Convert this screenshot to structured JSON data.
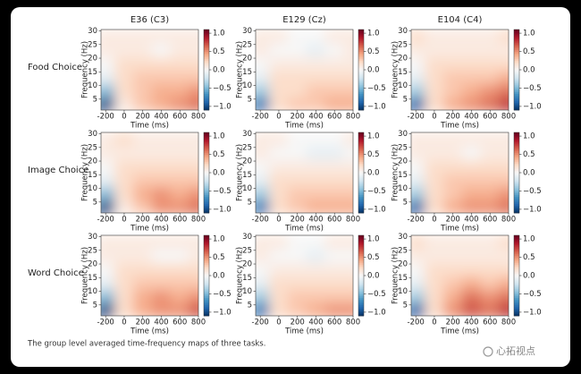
{
  "chart_data": {
    "type": "heatmap",
    "column_titles": [
      "E36 (C3)",
      "E129 (Cz)",
      "E104 (C4)"
    ],
    "row_labels": [
      "Food Choice",
      "Image Choice",
      "Word Choice"
    ],
    "x_label": "Time (ms)",
    "y_label": "Frequency (Hz)",
    "xlim": [
      -250,
      800
    ],
    "xticks": [
      -200,
      0,
      200,
      400,
      600,
      800
    ],
    "ylim": [
      1,
      30.5
    ],
    "yticks": [
      5,
      10,
      15,
      20,
      25,
      30
    ],
    "clim": [
      -1.1,
      1.1
    ],
    "cticks": [
      {
        "value": 1,
        "label": "1.0"
      },
      {
        "value": 0.5,
        "label": "0.5"
      },
      {
        "value": 0,
        "label": "0.0"
      },
      {
        "value": -0.5,
        "label": "−0.5"
      },
      {
        "value": -1,
        "label": "−1.0"
      }
    ],
    "colormap": "RdBu_r",
    "colors": [
      "#053061",
      "#2166ac",
      "#4393c3",
      "#92c5de",
      "#d1e5f0",
      "#f7f7f7",
      "#fddbc7",
      "#f4a582",
      "#d6604d",
      "#b2182b",
      "#67001f"
    ],
    "x": [
      -200,
      0,
      200,
      400,
      600,
      800
    ],
    "y": [
      3,
      8,
      13,
      18,
      23,
      28
    ],
    "panels": [
      {
        "z": [
          [
            -1.0,
            0.1,
            0.3,
            0.4,
            0.5,
            0.6
          ],
          [
            -0.5,
            0.2,
            0.3,
            0.4,
            0.4,
            0.5
          ],
          [
            -0.1,
            0.2,
            0.3,
            0.3,
            0.3,
            0.3
          ],
          [
            0.0,
            0.2,
            0.2,
            0.2,
            0.2,
            0.2
          ],
          [
            0.1,
            0.1,
            0.1,
            0.0,
            0.1,
            0.1
          ],
          [
            0.1,
            0.1,
            0.1,
            0.1,
            0.1,
            0.1
          ]
        ]
      },
      {
        "z": [
          [
            -0.8,
            0.2,
            0.3,
            0.3,
            0.4,
            0.4
          ],
          [
            -0.4,
            0.2,
            0.2,
            0.3,
            0.3,
            0.3
          ],
          [
            -0.1,
            0.2,
            0.2,
            0.2,
            0.2,
            0.2
          ],
          [
            0.0,
            0.1,
            0.1,
            0.1,
            0.1,
            0.1
          ],
          [
            0.1,
            0.0,
            0.0,
            -0.1,
            0.0,
            0.1
          ],
          [
            0.1,
            0.1,
            0.0,
            0.0,
            0.1,
            0.1
          ]
        ]
      },
      {
        "z": [
          [
            -0.9,
            0.2,
            0.4,
            0.5,
            0.6,
            0.8
          ],
          [
            -0.4,
            0.2,
            0.3,
            0.4,
            0.5,
            0.6
          ],
          [
            -0.1,
            0.2,
            0.3,
            0.3,
            0.3,
            0.4
          ],
          [
            0.0,
            0.2,
            0.2,
            0.2,
            0.2,
            0.2
          ],
          [
            0.1,
            0.1,
            0.1,
            0.1,
            0.1,
            0.1
          ],
          [
            0.2,
            0.1,
            0.1,
            0.1,
            0.1,
            0.2
          ]
        ]
      },
      {
        "z": [
          [
            -1.0,
            0.1,
            0.3,
            0.5,
            0.5,
            0.6
          ],
          [
            -0.5,
            0.2,
            0.4,
            0.5,
            0.4,
            0.5
          ],
          [
            -0.1,
            0.2,
            0.3,
            0.3,
            0.3,
            0.3
          ],
          [
            0.0,
            0.2,
            0.2,
            0.2,
            0.2,
            0.2
          ],
          [
            0.1,
            0.1,
            0.1,
            0.1,
            0.1,
            0.1
          ],
          [
            0.1,
            0.2,
            0.1,
            0.1,
            0.1,
            0.1
          ]
        ]
      },
      {
        "z": [
          [
            -0.8,
            0.2,
            0.3,
            0.4,
            0.4,
            0.4
          ],
          [
            -0.4,
            0.2,
            0.3,
            0.3,
            0.3,
            0.3
          ],
          [
            -0.1,
            0.2,
            0.2,
            0.2,
            0.2,
            0.2
          ],
          [
            0.0,
            0.1,
            0.1,
            0.1,
            0.1,
            0.1
          ],
          [
            0.1,
            0.0,
            0.0,
            -0.1,
            -0.1,
            0.0
          ],
          [
            0.1,
            0.1,
            0.0,
            0.0,
            0.0,
            0.1
          ]
        ]
      },
      {
        "z": [
          [
            -0.9,
            0.2,
            0.4,
            0.5,
            0.5,
            0.6
          ],
          [
            -0.4,
            0.2,
            0.3,
            0.4,
            0.4,
            0.5
          ],
          [
            -0.1,
            0.2,
            0.3,
            0.3,
            0.3,
            0.3
          ],
          [
            0.0,
            0.2,
            0.2,
            0.2,
            0.2,
            0.2
          ],
          [
            0.1,
            0.1,
            0.1,
            0.0,
            0.1,
            0.1
          ],
          [
            0.1,
            0.1,
            0.1,
            0.1,
            0.1,
            0.1
          ]
        ]
      },
      {
        "z": [
          [
            -1.0,
            0.2,
            0.4,
            0.5,
            0.5,
            0.7
          ],
          [
            -0.5,
            0.2,
            0.4,
            0.5,
            0.4,
            0.5
          ],
          [
            -0.1,
            0.2,
            0.3,
            0.3,
            0.3,
            0.3
          ],
          [
            0.0,
            0.2,
            0.2,
            0.2,
            0.2,
            0.2
          ],
          [
            0.1,
            0.1,
            0.1,
            0.0,
            0.0,
            0.1
          ],
          [
            0.1,
            0.1,
            0.1,
            0.1,
            0.1,
            0.1
          ]
        ]
      },
      {
        "z": [
          [
            -0.8,
            0.2,
            0.3,
            0.4,
            0.5,
            0.5
          ],
          [
            -0.4,
            0.2,
            0.3,
            0.3,
            0.3,
            0.3
          ],
          [
            -0.1,
            0.2,
            0.2,
            0.2,
            0.2,
            0.2
          ],
          [
            0.0,
            0.1,
            0.1,
            0.1,
            0.1,
            0.1
          ],
          [
            0.1,
            0.0,
            0.0,
            -0.1,
            0.0,
            0.0
          ],
          [
            0.1,
            0.1,
            0.0,
            0.0,
            0.1,
            0.1
          ]
        ]
      },
      {
        "z": [
          [
            -0.9,
            0.2,
            0.5,
            0.7,
            0.6,
            0.8
          ],
          [
            -0.4,
            0.2,
            0.4,
            0.6,
            0.5,
            0.6
          ],
          [
            -0.1,
            0.2,
            0.3,
            0.4,
            0.3,
            0.4
          ],
          [
            0.0,
            0.2,
            0.2,
            0.2,
            0.2,
            0.2
          ],
          [
            0.1,
            0.1,
            0.1,
            0.1,
            0.1,
            0.1
          ],
          [
            0.2,
            0.1,
            0.1,
            0.1,
            0.1,
            0.2
          ]
        ]
      }
    ],
    "caption": "The group level averaged time-frequency maps of three tasks.",
    "watermark": "心拓视点"
  }
}
